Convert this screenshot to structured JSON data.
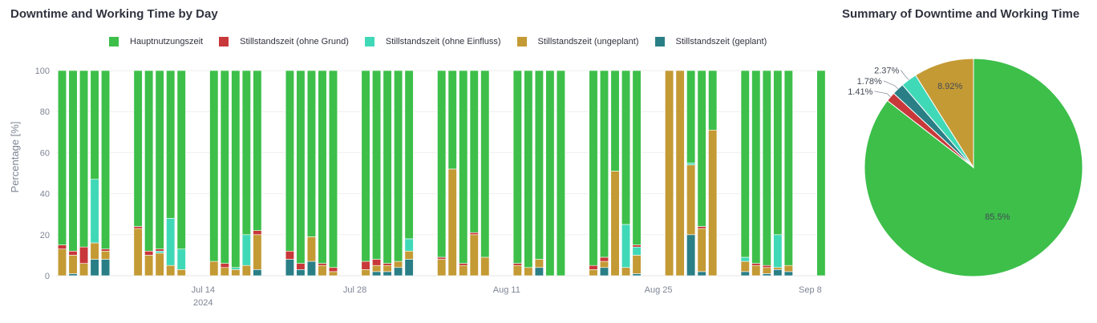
{
  "chart_data": [
    {
      "type": "bar",
      "stacked": true,
      "title": "Downtime and Working Time by Day",
      "ylabel": "Percentage [%]",
      "ylim": [
        0,
        100
      ],
      "yticks": [
        0,
        20,
        40,
        60,
        80,
        100
      ],
      "x_start": "2024-07-01",
      "x_end": "2024-09-09",
      "xticks": [
        {
          "date": "2024-07-14",
          "label": "Jul 14",
          "sub": "2024"
        },
        {
          "date": "2024-07-28",
          "label": "Jul 28",
          "sub": ""
        },
        {
          "date": "2024-08-11",
          "label": "Aug 11",
          "sub": ""
        },
        {
          "date": "2024-08-25",
          "label": "Aug 25",
          "sub": ""
        },
        {
          "date": "2024-09-08",
          "label": "Sep 8",
          "sub": ""
        }
      ],
      "grid": true,
      "legend_position": "top",
      "series_names": [
        "Hauptnutzungszeit",
        "Stillstandszeit (ohne Grund)",
        "Stillstandszeit (ohne Einfluss)",
        "Stillstandszeit (ungeplant)",
        "Stillstandszeit (geplant)"
      ],
      "colors": [
        "#3dbf4a",
        "#c8383a",
        "#40d9b8",
        "#c49a35",
        "#2a7f86"
      ],
      "stack_order": [
        "Stillstandszeit (geplant)",
        "Stillstandszeit (ungeplant)",
        "Stillstandszeit (ohne Einfluss)",
        "Stillstandszeit (ohne Grund)",
        "Hauptnutzungszeit"
      ],
      "days": [
        {
          "date": "2024-07-01",
          "geplant": 0,
          "ungeplant": 13,
          "ohne_einfluss": 0,
          "ohne_grund": 2,
          "haupt": 85
        },
        {
          "date": "2024-07-02",
          "geplant": 1,
          "ungeplant": 9,
          "ohne_einfluss": 0,
          "ohne_grund": 2,
          "haupt": 88
        },
        {
          "date": "2024-07-03",
          "geplant": 0,
          "ungeplant": 6,
          "ohne_einfluss": 0,
          "ohne_grund": 8,
          "haupt": 86
        },
        {
          "date": "2024-07-04",
          "geplant": 8,
          "ungeplant": 8,
          "ohne_einfluss": 31,
          "ohne_grund": 0,
          "haupt": 53
        },
        {
          "date": "2024-07-05",
          "geplant": 8,
          "ungeplant": 4,
          "ohne_einfluss": 0,
          "ohne_grund": 1,
          "haupt": 87
        },
        {
          "date": "2024-07-08",
          "geplant": 0,
          "ungeplant": 23,
          "ohne_einfluss": 0,
          "ohne_grund": 1,
          "haupt": 76
        },
        {
          "date": "2024-07-09",
          "geplant": 0,
          "ungeplant": 10,
          "ohne_einfluss": 0,
          "ohne_grund": 2,
          "haupt": 88
        },
        {
          "date": "2024-07-10",
          "geplant": 0,
          "ungeplant": 11,
          "ohne_einfluss": 1,
          "ohne_grund": 1,
          "haupt": 87
        },
        {
          "date": "2024-07-11",
          "geplant": 0,
          "ungeplant": 5,
          "ohne_einfluss": 23,
          "ohne_grund": 0,
          "haupt": 72
        },
        {
          "date": "2024-07-12",
          "geplant": 0,
          "ungeplant": 3,
          "ohne_einfluss": 10,
          "ohne_grund": 0,
          "haupt": 87
        },
        {
          "date": "2024-07-15",
          "geplant": 0,
          "ungeplant": 7,
          "ohne_einfluss": 0,
          "ohne_grund": 0,
          "haupt": 93
        },
        {
          "date": "2024-07-16",
          "geplant": 0,
          "ungeplant": 4,
          "ohne_einfluss": 0,
          "ohne_grund": 2,
          "haupt": 94
        },
        {
          "date": "2024-07-17",
          "geplant": 0,
          "ungeplant": 3,
          "ohne_einfluss": 1,
          "ohne_grund": 0,
          "haupt": 96
        },
        {
          "date": "2024-07-18",
          "geplant": 0,
          "ungeplant": 5,
          "ohne_einfluss": 15,
          "ohne_grund": 0,
          "haupt": 80
        },
        {
          "date": "2024-07-19",
          "geplant": 3,
          "ungeplant": 17,
          "ohne_einfluss": 0,
          "ohne_grund": 2,
          "haupt": 78
        },
        {
          "date": "2024-07-22",
          "geplant": 8,
          "ungeplant": 0,
          "ohne_einfluss": 0,
          "ohne_grund": 4,
          "haupt": 88
        },
        {
          "date": "2024-07-23",
          "geplant": 3,
          "ungeplant": 0,
          "ohne_einfluss": 0,
          "ohne_grund": 3,
          "haupt": 94
        },
        {
          "date": "2024-07-24",
          "geplant": 7,
          "ungeplant": 12,
          "ohne_einfluss": 0,
          "ohne_grund": 0,
          "haupt": 81
        },
        {
          "date": "2024-07-25",
          "geplant": 0,
          "ungeplant": 5,
          "ohne_einfluss": 0,
          "ohne_grund": 1,
          "haupt": 94
        },
        {
          "date": "2024-07-26",
          "geplant": 0,
          "ungeplant": 2,
          "ohne_einfluss": 0,
          "ohne_grund": 2,
          "haupt": 96
        },
        {
          "date": "2024-07-29",
          "geplant": 0,
          "ungeplant": 3,
          "ohne_einfluss": 0,
          "ohne_grund": 4,
          "haupt": 93
        },
        {
          "date": "2024-07-30",
          "geplant": 2,
          "ungeplant": 3,
          "ohne_einfluss": 0,
          "ohne_grund": 3,
          "haupt": 92
        },
        {
          "date": "2024-07-31",
          "geplant": 2,
          "ungeplant": 3,
          "ohne_einfluss": 0,
          "ohne_grund": 1,
          "haupt": 94
        },
        {
          "date": "2024-08-01",
          "geplant": 4,
          "ungeplant": 3,
          "ohne_einfluss": 0,
          "ohne_grund": 0,
          "haupt": 93
        },
        {
          "date": "2024-08-02",
          "geplant": 8,
          "ungeplant": 4,
          "ohne_einfluss": 6,
          "ohne_grund": 0,
          "haupt": 82
        },
        {
          "date": "2024-08-05",
          "geplant": 0,
          "ungeplant": 8,
          "ohne_einfluss": 0,
          "ohne_grund": 1,
          "haupt": 91
        },
        {
          "date": "2024-08-06",
          "geplant": 0,
          "ungeplant": 52,
          "ohne_einfluss": 0,
          "ohne_grund": 0,
          "haupt": 48
        },
        {
          "date": "2024-08-07",
          "geplant": 0,
          "ungeplant": 5,
          "ohne_einfluss": 0,
          "ohne_grund": 1,
          "haupt": 94
        },
        {
          "date": "2024-08-08",
          "geplant": 0,
          "ungeplant": 20,
          "ohne_einfluss": 0,
          "ohne_grund": 1,
          "haupt": 79
        },
        {
          "date": "2024-08-09",
          "geplant": 0,
          "ungeplant": 9,
          "ohne_einfluss": 0,
          "ohne_grund": 0,
          "haupt": 91
        },
        {
          "date": "2024-08-12",
          "geplant": 0,
          "ungeplant": 5,
          "ohne_einfluss": 0,
          "ohne_grund": 1,
          "haupt": 94
        },
        {
          "date": "2024-08-13",
          "geplant": 0,
          "ungeplant": 4,
          "ohne_einfluss": 0,
          "ohne_grund": 0,
          "haupt": 96
        },
        {
          "date": "2024-08-14",
          "geplant": 4,
          "ungeplant": 4,
          "ohne_einfluss": 0,
          "ohne_grund": 0,
          "haupt": 92
        },
        {
          "date": "2024-08-15",
          "geplant": 0,
          "ungeplant": 0,
          "ohne_einfluss": 0,
          "ohne_grund": 0,
          "haupt": 100
        },
        {
          "date": "2024-08-16",
          "geplant": 0,
          "ungeplant": 0,
          "ohne_einfluss": 0,
          "ohne_grund": 0,
          "haupt": 100
        },
        {
          "date": "2024-08-19",
          "geplant": 0,
          "ungeplant": 3,
          "ohne_einfluss": 0,
          "ohne_grund": 2,
          "haupt": 95
        },
        {
          "date": "2024-08-20",
          "geplant": 4,
          "ungeplant": 3,
          "ohne_einfluss": 0,
          "ohne_grund": 2,
          "haupt": 91
        },
        {
          "date": "2024-08-21",
          "geplant": 0,
          "ungeplant": 51,
          "ohne_einfluss": 0,
          "ohne_grund": 0,
          "haupt": 49
        },
        {
          "date": "2024-08-22",
          "geplant": 0,
          "ungeplant": 4,
          "ohne_einfluss": 21,
          "ohne_grund": 0,
          "haupt": 75
        },
        {
          "date": "2024-08-23",
          "geplant": 1,
          "ungeplant": 9,
          "ohne_einfluss": 4,
          "ohne_grund": 1,
          "haupt": 85
        },
        {
          "date": "2024-08-26",
          "geplant": 0,
          "ungeplant": 100,
          "ohne_einfluss": 0,
          "ohne_grund": 0,
          "haupt": 0
        },
        {
          "date": "2024-08-27",
          "geplant": 0,
          "ungeplant": 100,
          "ohne_einfluss": 0,
          "ohne_grund": 0,
          "haupt": 0
        },
        {
          "date": "2024-08-28",
          "geplant": 20,
          "ungeplant": 34,
          "ohne_einfluss": 1,
          "ohne_grund": 0,
          "haupt": 45
        },
        {
          "date": "2024-08-29",
          "geplant": 2,
          "ungeplant": 21,
          "ohne_einfluss": 0,
          "ohne_grund": 1,
          "haupt": 76
        },
        {
          "date": "2024-08-30",
          "geplant": 0,
          "ungeplant": 71,
          "ohne_einfluss": 0,
          "ohne_grund": 0,
          "haupt": 29
        },
        {
          "date": "2024-09-02",
          "geplant": 2,
          "ungeplant": 5,
          "ohne_einfluss": 2,
          "ohne_grund": 0,
          "haupt": 91
        },
        {
          "date": "2024-09-03",
          "geplant": 0,
          "ungeplant": 5,
          "ohne_einfluss": 0,
          "ohne_grund": 1,
          "haupt": 94
        },
        {
          "date": "2024-09-04",
          "geplant": 1,
          "ungeplant": 3,
          "ohne_einfluss": 0,
          "ohne_grund": 1,
          "haupt": 95
        },
        {
          "date": "2024-09-05",
          "geplant": 3,
          "ungeplant": 1,
          "ohne_einfluss": 16,
          "ohne_grund": 0,
          "haupt": 80
        },
        {
          "date": "2024-09-06",
          "geplant": 2,
          "ungeplant": 3,
          "ohne_einfluss": 0,
          "ohne_grund": 0,
          "haupt": 95
        },
        {
          "date": "2024-09-09",
          "geplant": 0,
          "ungeplant": 0,
          "ohne_einfluss": 0,
          "ohne_grund": 0,
          "haupt": 100
        }
      ]
    },
    {
      "type": "pie",
      "title": "Summary of Downtime and Working Time",
      "slices": [
        {
          "name": "Hauptnutzungszeit",
          "value": 85.5,
          "label": "85.5%",
          "color": "#3dbf4a"
        },
        {
          "name": "Stillstandszeit (ohne Grund)",
          "value": 1.41,
          "label": "1.41%",
          "color": "#c8383a"
        },
        {
          "name": "Stillstandszeit (geplant)",
          "value": 1.78,
          "label": "1.78%",
          "color": "#2a7f86"
        },
        {
          "name": "Stillstandszeit (ohne Einfluss)",
          "value": 2.37,
          "label": "2.37%",
          "color": "#40d9b8"
        },
        {
          "name": "Stillstandszeit (ungeplant)",
          "value": 8.92,
          "label": "8.92%",
          "color": "#c49a35"
        }
      ]
    }
  ]
}
